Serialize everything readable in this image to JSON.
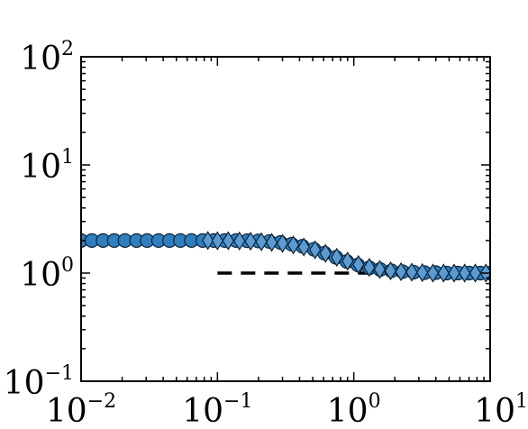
{
  "chart_data": {
    "type": "scatter",
    "title": "",
    "xlabel": "",
    "ylabel": "",
    "xscale": "log",
    "yscale": "log",
    "xlim": [
      0.01,
      10
    ],
    "ylim": [
      0.1,
      100
    ],
    "grid": false,
    "x_ticks": [
      {
        "value": 0.01,
        "base": "10",
        "exp": "−2"
      },
      {
        "value": 0.1,
        "base": "10",
        "exp": "−1"
      },
      {
        "value": 1,
        "base": "10",
        "exp": "0"
      },
      {
        "value": 10,
        "base": "10",
        "exp": "1"
      }
    ],
    "y_ticks": [
      {
        "value": 0.1,
        "base": "10",
        "exp": "−1"
      },
      {
        "value": 1,
        "base": "10",
        "exp": "0"
      },
      {
        "value": 10,
        "base": "10",
        "exp": "1"
      },
      {
        "value": 100,
        "base": "10",
        "exp": "2"
      }
    ],
    "series": [
      {
        "marker": "circle",
        "color": "#2f7fbf",
        "points": [
          [
            0.01,
            2.0
          ],
          [
            0.012,
            2.0
          ],
          [
            0.0145,
            2.0
          ],
          [
            0.0175,
            2.0
          ],
          [
            0.021,
            2.0
          ],
          [
            0.0255,
            2.0
          ],
          [
            0.0305,
            2.0
          ],
          [
            0.037,
            2.0
          ],
          [
            0.0445,
            2.0
          ],
          [
            0.0535,
            2.0
          ],
          [
            0.0645,
            2.0
          ],
          [
            0.078,
            2.0
          ],
          [
            0.094,
            2.0
          ],
          [
            0.113,
            2.0
          ],
          [
            0.137,
            2.0
          ],
          [
            0.165,
            1.99
          ],
          [
            0.199,
            1.98
          ],
          [
            0.24,
            1.96
          ],
          [
            0.29,
            1.92
          ],
          [
            0.35,
            1.85
          ],
          [
            0.42,
            1.77
          ],
          [
            0.51,
            1.66
          ],
          [
            0.61,
            1.53
          ],
          [
            0.74,
            1.4
          ],
          [
            0.89,
            1.28
          ],
          [
            1.07,
            1.19
          ],
          [
            1.3,
            1.12
          ],
          [
            1.56,
            1.08
          ],
          [
            1.89,
            1.05
          ],
          [
            2.28,
            1.03
          ],
          [
            2.75,
            1.02
          ],
          [
            3.31,
            1.01
          ],
          [
            4.0,
            1.01
          ],
          [
            4.82,
            1.0
          ],
          [
            5.82,
            1.0
          ],
          [
            7.02,
            1.0
          ],
          [
            8.47,
            1.0
          ],
          [
            10.0,
            1.0
          ]
        ]
      },
      {
        "marker": "diamond",
        "color": "#5b9bd2",
        "points": [
          [
            0.085,
            2.0
          ],
          [
            0.1,
            1.99
          ],
          [
            0.12,
            1.99
          ],
          [
            0.145,
            1.98
          ],
          [
            0.175,
            1.97
          ],
          [
            0.21,
            1.95
          ],
          [
            0.25,
            1.92
          ],
          [
            0.3,
            1.88
          ],
          [
            0.36,
            1.82
          ],
          [
            0.43,
            1.74
          ],
          [
            0.52,
            1.64
          ],
          [
            0.62,
            1.52
          ],
          [
            0.75,
            1.4
          ],
          [
            0.9,
            1.29
          ],
          [
            1.08,
            1.2
          ],
          [
            1.3,
            1.13
          ],
          [
            1.55,
            1.08
          ],
          [
            1.86,
            1.05
          ],
          [
            2.22,
            1.03
          ],
          [
            2.66,
            1.02
          ],
          [
            3.18,
            1.01
          ],
          [
            3.8,
            1.0
          ],
          [
            4.55,
            1.0
          ],
          [
            5.44,
            1.0
          ],
          [
            6.5,
            1.0
          ],
          [
            7.78,
            1.0
          ],
          [
            9.3,
            1.0
          ]
        ]
      }
    ],
    "reference_line": {
      "style": "dashed",
      "color": "#000000",
      "x": [
        0.1,
        10
      ],
      "y": [
        1,
        1
      ]
    }
  }
}
